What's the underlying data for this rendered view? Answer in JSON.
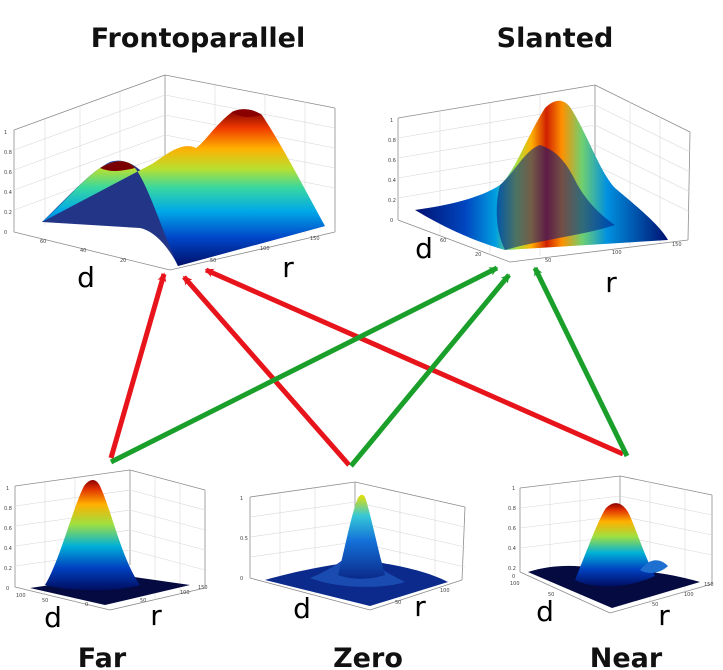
{
  "top_plots": [
    {
      "title": "Frontoparallel",
      "axis_d": "d",
      "axis_r": "r"
    },
    {
      "title": "Slanted",
      "axis_d": "d",
      "axis_r": "r"
    }
  ],
  "bottom_plots": [
    {
      "title": "Far",
      "axis_d": "d",
      "axis_r": "r"
    },
    {
      "title": "Zero",
      "axis_d": "d",
      "axis_r": "r"
    },
    {
      "title": "Near",
      "axis_d": "d",
      "axis_r": "r"
    }
  ],
  "connections": [
    {
      "from": "Far",
      "to": "Frontoparallel",
      "color": "#e8141b"
    },
    {
      "from": "Zero",
      "to": "Frontoparallel",
      "color": "#e8141b"
    },
    {
      "from": "Near",
      "to": "Frontoparallel",
      "color": "#e8141b"
    },
    {
      "from": "Far",
      "to": "Slanted",
      "color": "#1aa02a"
    },
    {
      "from": "Zero",
      "to": "Slanted",
      "color": "#1aa02a"
    },
    {
      "from": "Near",
      "to": "Slanted",
      "color": "#1aa02a"
    }
  ],
  "colors": {
    "red_arrow": "#e8141b",
    "green_arrow": "#1aa02a"
  }
}
